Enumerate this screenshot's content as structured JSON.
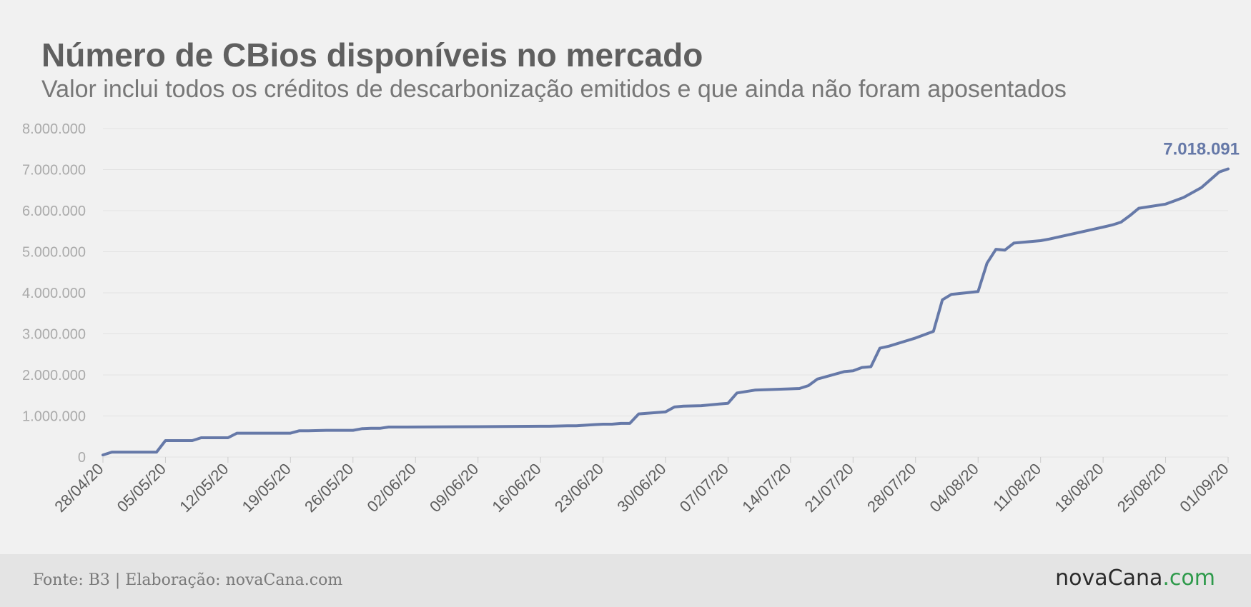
{
  "header": {
    "title": "Número de CBios disponíveis no mercado",
    "subtitle": "Valor inclui todos os créditos de descarbonização emitidos e que ainda não foram aposentados"
  },
  "footer": {
    "source": "Fonte: B3 | Elaboração: novaCana.com",
    "logo_main": "novaCana",
    "logo_suffix": ".com"
  },
  "colors": {
    "line": "#6679a8",
    "grid": "#e2e2e2",
    "ytick": "#aaaaaa",
    "xtick": "#5c5c5c",
    "logo_accent": "#2e9a4b"
  },
  "chart_data": {
    "type": "line",
    "title": "Número de CBios disponíveis no mercado",
    "subtitle": "Valor inclui todos os créditos de descarbonização emitidos e que ainda não foram aposentados",
    "xlabel": "",
    "ylabel": "",
    "ylim": [
      0,
      8000000
    ],
    "yticks": [
      0,
      1000000,
      2000000,
      3000000,
      4000000,
      5000000,
      6000000,
      7000000,
      8000000
    ],
    "ytick_labels": [
      "0",
      "1.000.000",
      "2.000.000",
      "3.000.000",
      "4.000.000",
      "5.000.000",
      "6.000.000",
      "7.000.000",
      "8.000.000"
    ],
    "xlim": [
      "2020-04-28",
      "2020-09-01"
    ],
    "xtick_labels": [
      "28/04/20",
      "05/05/20",
      "12/05/20",
      "19/05/20",
      "26/05/20",
      "02/06/20",
      "09/06/20",
      "16/06/20",
      "23/06/20",
      "30/06/20",
      "07/07/20",
      "14/07/20",
      "21/07/20",
      "28/07/20",
      "04/08/20",
      "11/08/20",
      "18/08/20",
      "25/08/20",
      "01/09/20"
    ],
    "grid": true,
    "legend": "none",
    "end_label": "7.018.091",
    "series": [
      {
        "x": [
          "2020-04-28",
          "2020-04-29",
          "2020-05-01",
          "2020-05-04",
          "2020-05-05",
          "2020-05-06",
          "2020-05-08",
          "2020-05-09",
          "2020-05-11",
          "2020-05-12",
          "2020-05-13",
          "2020-05-15",
          "2020-05-19",
          "2020-05-20",
          "2020-05-21",
          "2020-05-23",
          "2020-05-25",
          "2020-05-26",
          "2020-05-27",
          "2020-05-28",
          "2020-05-29",
          "2020-05-30",
          "2020-06-01",
          "2020-06-09",
          "2020-06-16",
          "2020-06-17",
          "2020-06-19",
          "2020-06-20",
          "2020-06-22",
          "2020-06-23",
          "2020-06-24",
          "2020-06-25",
          "2020-06-26",
          "2020-06-27",
          "2020-06-30",
          "2020-07-01",
          "2020-07-02",
          "2020-07-04",
          "2020-07-06",
          "2020-07-07",
          "2020-07-08",
          "2020-07-10",
          "2020-07-14",
          "2020-07-15",
          "2020-07-16",
          "2020-07-17",
          "2020-07-20",
          "2020-07-21",
          "2020-07-22",
          "2020-07-23",
          "2020-07-24",
          "2020-07-25",
          "2020-07-28",
          "2020-07-29",
          "2020-07-30",
          "2020-07-31",
          "2020-08-01",
          "2020-08-04",
          "2020-08-05",
          "2020-08-06",
          "2020-08-07",
          "2020-08-08",
          "2020-08-11",
          "2020-08-12",
          "2020-08-18",
          "2020-08-19",
          "2020-08-20",
          "2020-08-21",
          "2020-08-22",
          "2020-08-25",
          "2020-08-26",
          "2020-08-27",
          "2020-08-29",
          "2020-08-31",
          "2020-09-01"
        ],
        "values": [
          50000,
          120000,
          120000,
          120000,
          400000,
          400000,
          400000,
          470000,
          470000,
          470000,
          580000,
          580000,
          580000,
          640000,
          640000,
          650000,
          650000,
          650000,
          690000,
          700000,
          700000,
          730000,
          730000,
          740000,
          750000,
          750000,
          760000,
          760000,
          790000,
          800000,
          800000,
          820000,
          820000,
          1050000,
          1100000,
          1220000,
          1240000,
          1250000,
          1290000,
          1310000,
          1560000,
          1630000,
          1660000,
          1670000,
          1740000,
          1900000,
          2080000,
          2100000,
          2180000,
          2200000,
          2650000,
          2700000,
          2900000,
          2980000,
          3060000,
          3830000,
          3960000,
          4030000,
          4720000,
          5060000,
          5040000,
          5210000,
          5270000,
          5310000,
          5600000,
          5650000,
          5720000,
          5880000,
          6060000,
          6160000,
          6240000,
          6320000,
          6560000,
          6940000,
          7018091
        ]
      }
    ]
  }
}
